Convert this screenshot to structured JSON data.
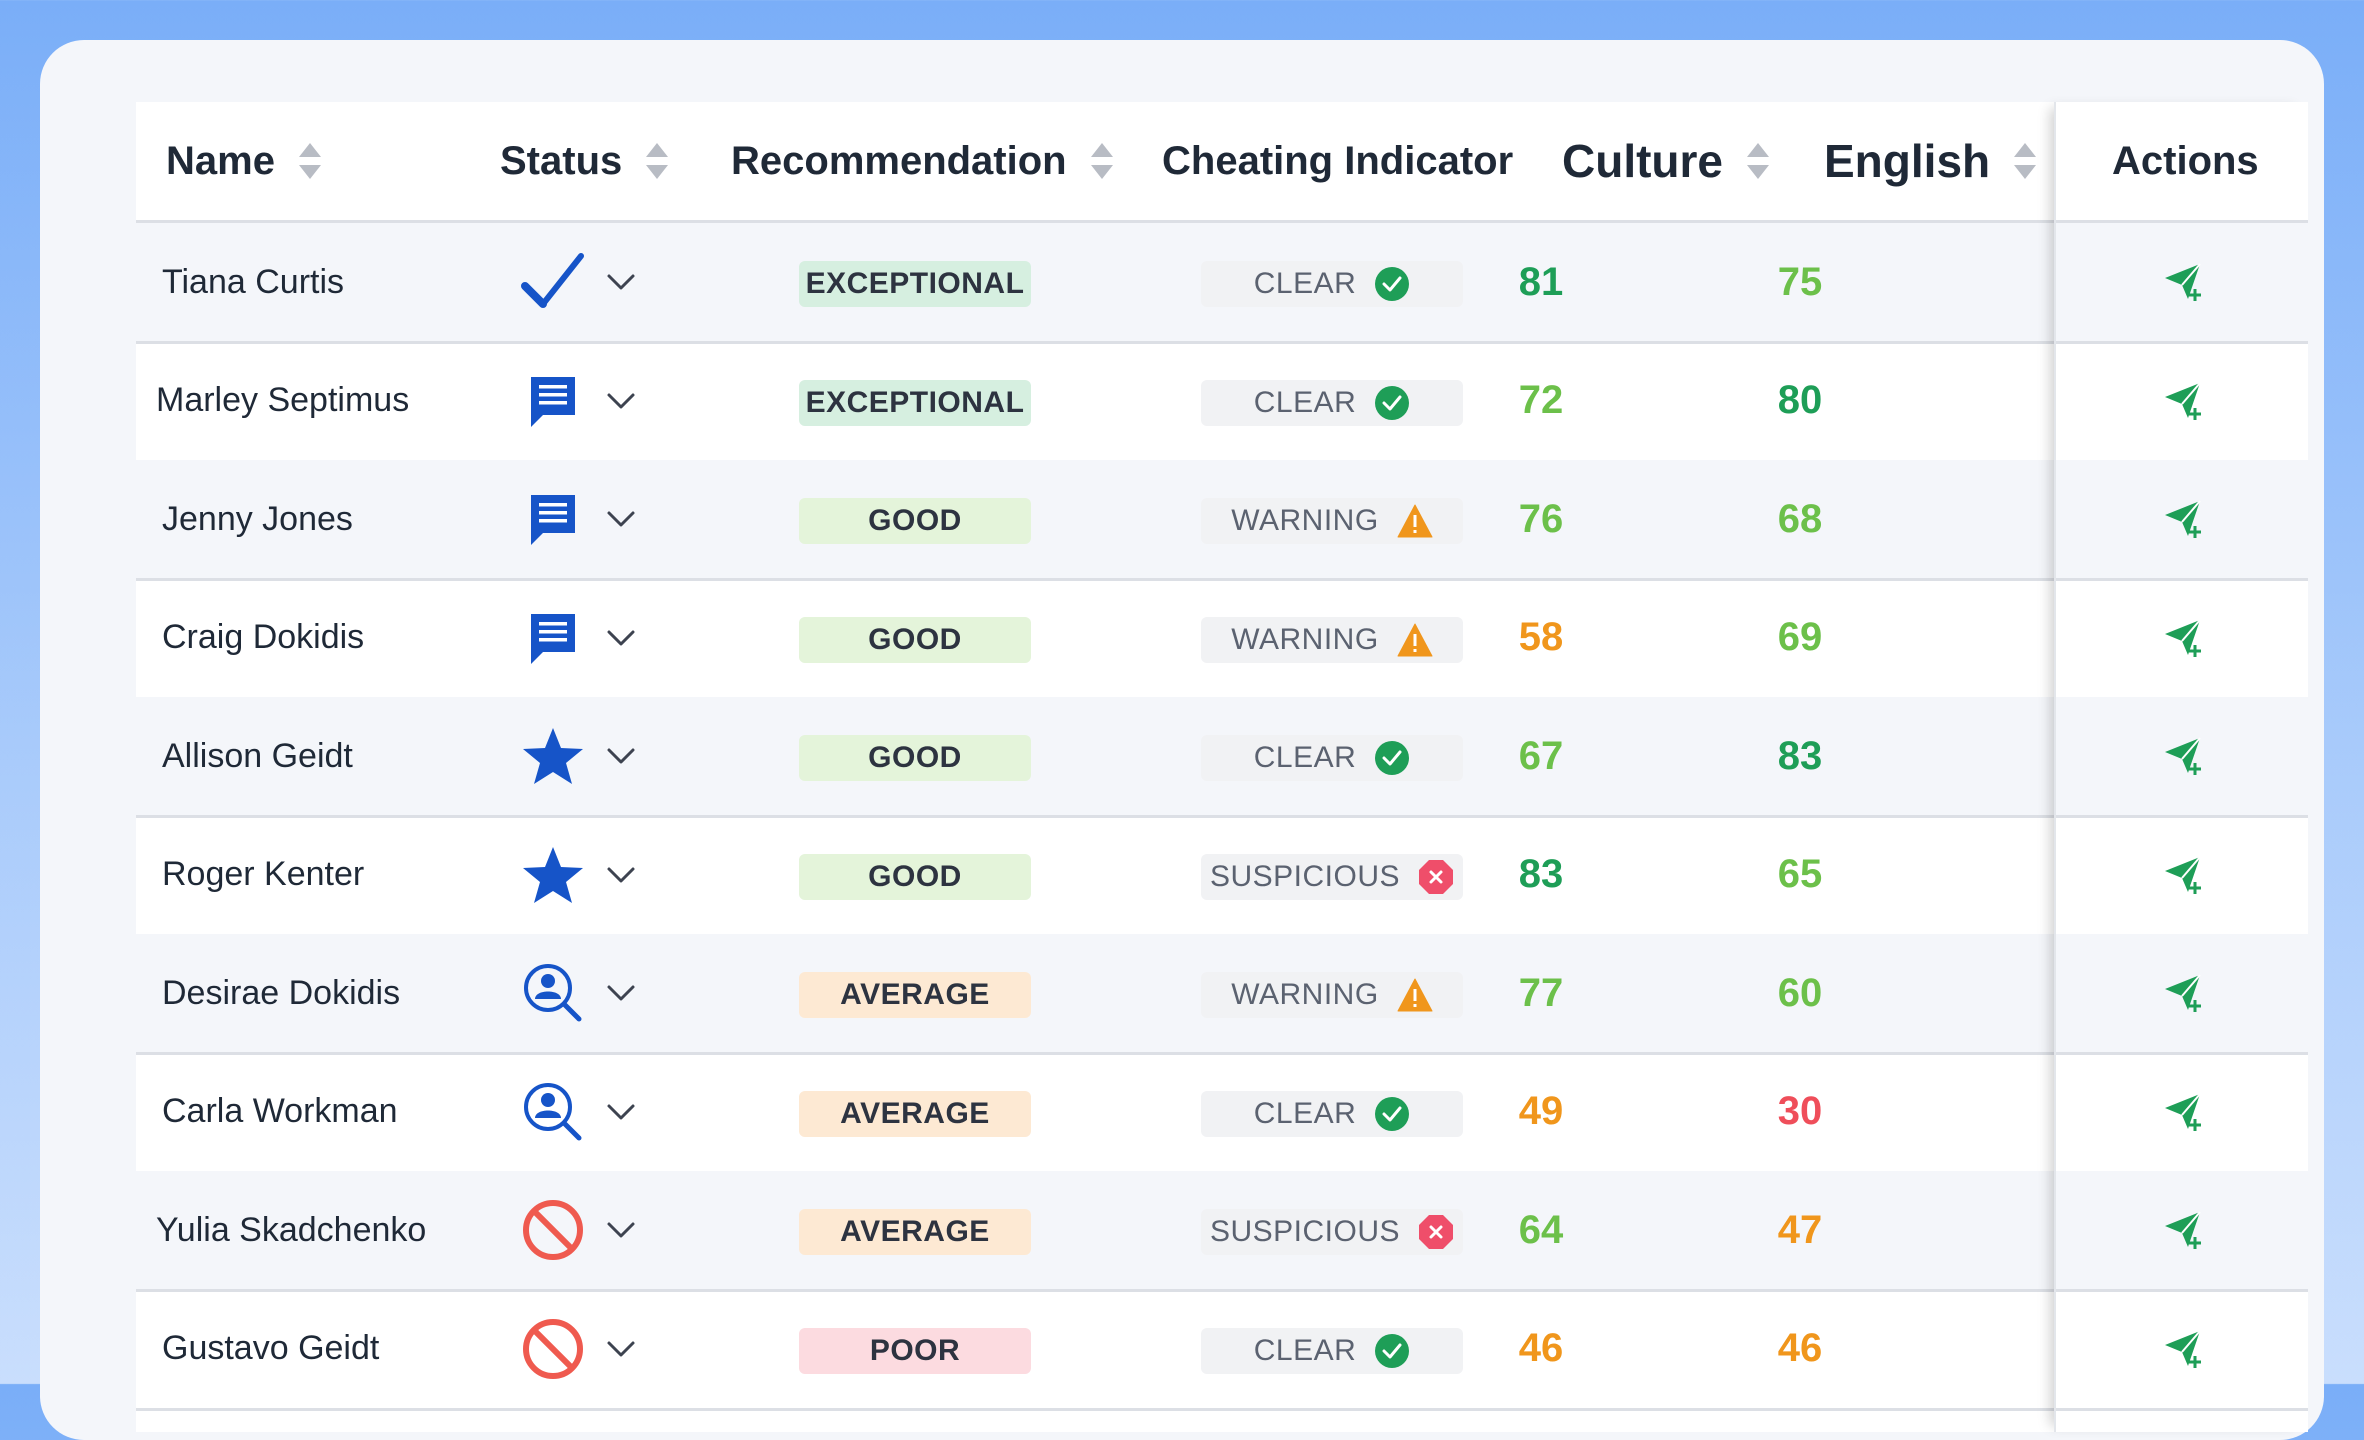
{
  "header": {
    "name": "Name",
    "status": "Status",
    "recommendation": "Recommendation",
    "cheating": "Cheating Indicator",
    "culture": "Culture",
    "english": "English",
    "actions": "Actions"
  },
  "colors": {
    "score_dark_green": "#1e9e57",
    "score_light_green": "#6cc04a",
    "score_orange": "#f0961c",
    "score_red": "#ef4e5a",
    "status_blue": "#1654c8",
    "status_red": "#ef5a4f"
  },
  "rows": [
    {
      "name": "Tiana Curtis",
      "status_icon": "check-icon",
      "recommendation": "EXCEPTIONAL",
      "cheating": "CLEAR",
      "cheating_icon": "check-circle-icon",
      "culture": "81",
      "english": "75"
    },
    {
      "name": "Marley Septimus",
      "status_icon": "message-icon",
      "recommendation": "EXCEPTIONAL",
      "cheating": "CLEAR",
      "cheating_icon": "check-circle-icon",
      "culture": "72",
      "english": "80"
    },
    {
      "name": "Jenny Jones",
      "status_icon": "message-icon",
      "recommendation": "GOOD",
      "cheating": "WARNING",
      "cheating_icon": "warning-triangle-icon",
      "culture": "76",
      "english": "68"
    },
    {
      "name": "Craig Dokidis",
      "status_icon": "message-icon",
      "recommendation": "GOOD",
      "cheating": "WARNING",
      "cheating_icon": "warning-triangle-icon",
      "culture": "58",
      "english": "69"
    },
    {
      "name": "Allison Geidt",
      "status_icon": "star-icon",
      "recommendation": "GOOD",
      "cheating": "CLEAR",
      "cheating_icon": "check-circle-icon",
      "culture": "67",
      "english": "83"
    },
    {
      "name": "Roger Kenter",
      "status_icon": "star-icon",
      "recommendation": "GOOD",
      "cheating": "SUSPICIOUS",
      "cheating_icon": "x-octagon-icon",
      "culture": "83",
      "english": "65"
    },
    {
      "name": "Desirae Dokidis",
      "status_icon": "user-search-icon",
      "recommendation": "AVERAGE",
      "cheating": "WARNING",
      "cheating_icon": "warning-triangle-icon",
      "culture": "77",
      "english": "60"
    },
    {
      "name": "Carla Workman",
      "status_icon": "user-search-icon",
      "recommendation": "AVERAGE",
      "cheating": "CLEAR",
      "cheating_icon": "check-circle-icon",
      "culture": "49",
      "english": "30"
    },
    {
      "name": "Yulia Skadchenko",
      "status_icon": "prohibited-icon",
      "recommendation": "AVERAGE",
      "cheating": "SUSPICIOUS",
      "cheating_icon": "x-octagon-icon",
      "culture": "64",
      "english": "47"
    },
    {
      "name": "Gustavo Geidt",
      "status_icon": "prohibited-icon",
      "recommendation": "POOR",
      "cheating": "CLEAR",
      "cheating_icon": "check-circle-icon",
      "culture": "46",
      "english": "46"
    }
  ],
  "action_icon": "send-plus-icon"
}
